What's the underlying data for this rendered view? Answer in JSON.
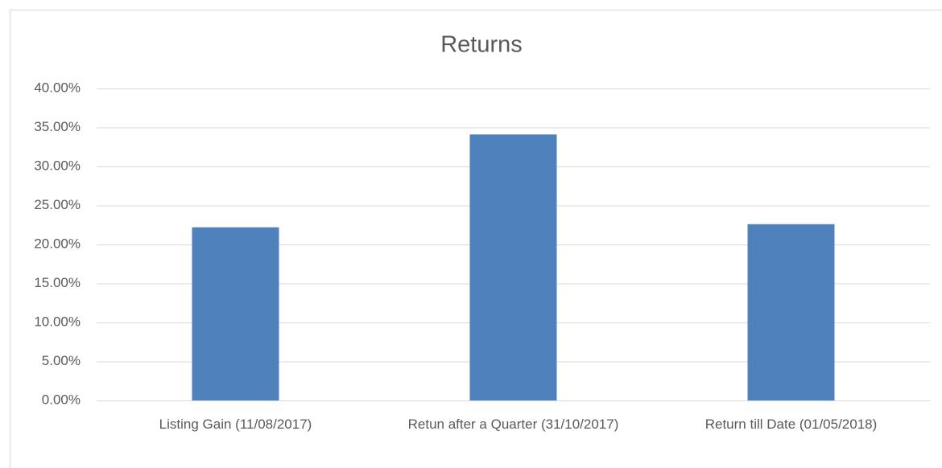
{
  "chart_data": {
    "type": "bar",
    "title": "Returns",
    "categories": [
      "Listing Gain (11/08/2017)",
      "Retun after a Quarter (31/10/2017)",
      "Return till Date (01/05/2018)"
    ],
    "values": [
      22.2,
      34.1,
      22.6
    ],
    "color": "#4f81bd",
    "ylim": [
      0,
      40
    ],
    "yticks": [
      {
        "value": 0,
        "label": "0.00%"
      },
      {
        "value": 5,
        "label": "5.00%"
      },
      {
        "value": 10,
        "label": "10.00%"
      },
      {
        "value": 15,
        "label": "15.00%"
      },
      {
        "value": 20,
        "label": "20.00%"
      },
      {
        "value": 25,
        "label": "25.00%"
      },
      {
        "value": 30,
        "label": "30.00%"
      },
      {
        "value": 35,
        "label": "35.00%"
      },
      {
        "value": 40,
        "label": "40.00%"
      }
    ],
    "grid": true
  }
}
